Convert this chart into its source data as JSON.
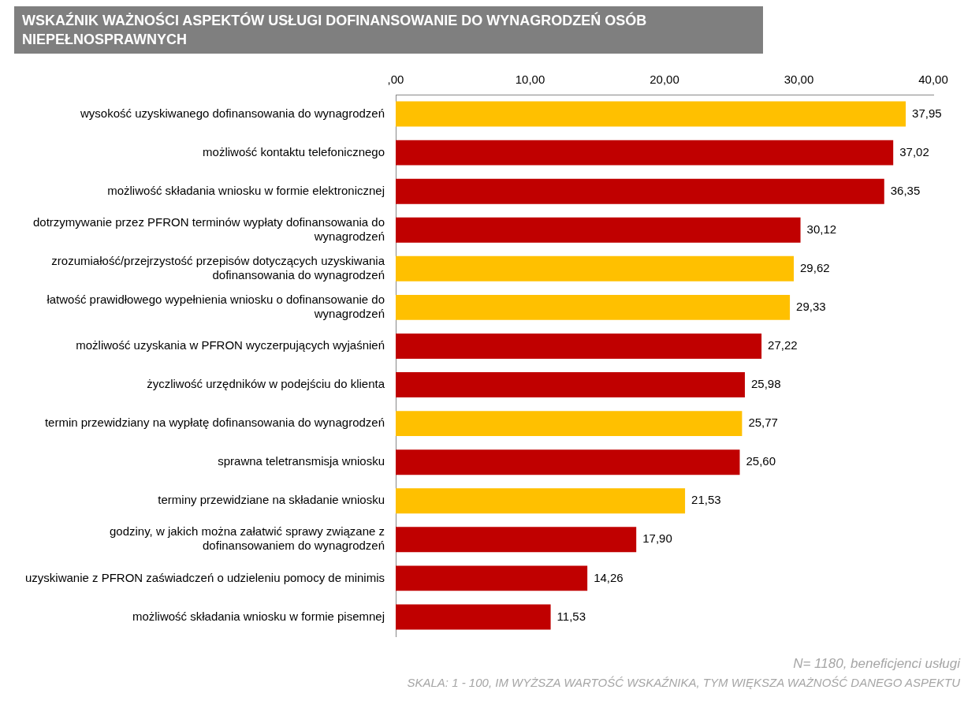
{
  "chart_data": {
    "type": "bar",
    "orientation": "horizontal",
    "title": "WSKAŹNIK WAŻNOŚCI ASPEKTÓW USŁUGI DOFINANSOWANIE DO WYNAGRODZEŃ OSÓB NIEPEŁNOSPRAWNYCH",
    "categories": [
      "wysokość uzyskiwanego dofinansowania do wynagrodzeń",
      "możliwość kontaktu telefonicznego",
      "możliwość składania wniosku w formie elektronicznej",
      "dotrzymywanie przez PFRON terminów wypłaty dofinansowania do wynagrodzeń",
      "zrozumiałość/przejrzystość przepisów dotyczących uzyskiwania dofinansowania do wynagrodzeń",
      "łatwość prawidłowego wypełnienia wniosku o dofinansowanie do wynagrodzeń",
      "możliwość uzyskania w PFRON wyczerpujących wyjaśnień",
      "życzliwość urzędników w podejściu do klienta",
      "termin przewidziany na wypłatę dofinansowania do wynagrodzeń",
      "sprawna teletransmisja wniosku",
      "terminy przewidziane na składanie wniosku",
      "godziny, w jakich można załatwić sprawy związane z dofinansowaniem do wynagrodzeń",
      "uzyskiwanie z PFRON zaświadczeń o udzieleniu pomocy de minimis",
      "możliwość składania wniosku w formie pisemnej"
    ],
    "values": [
      37.95,
      37.02,
      36.35,
      30.12,
      29.62,
      29.33,
      27.22,
      25.98,
      25.77,
      25.6,
      21.53,
      17.9,
      14.26,
      11.53
    ],
    "colors": [
      "#ffc000",
      "#c00000",
      "#c00000",
      "#c00000",
      "#ffc000",
      "#ffc000",
      "#c00000",
      "#c00000",
      "#ffc000",
      "#c00000",
      "#ffc000",
      "#c00000",
      "#c00000",
      "#c00000"
    ],
    "value_labels": [
      "37,95",
      "37,02",
      "36,35",
      "30,12",
      "29,62",
      "29,33",
      "27,22",
      "25,98",
      "25,77",
      "25,60",
      "21,53",
      "17,90",
      "14,26",
      "11,53"
    ],
    "xlim": [
      0,
      40
    ],
    "xticks": [
      {
        "value": 0,
        "label": ",00"
      },
      {
        "value": 10,
        "label": "10,00"
      },
      {
        "value": 20,
        "label": "20,00"
      },
      {
        "value": 30,
        "label": "30,00"
      },
      {
        "value": 40,
        "label": "40,00"
      }
    ],
    "grid": false,
    "annotations": [
      "N= 1180, beneficjenci usługi",
      "SKALA: 1 - 100, IM WYŻSZA WARTOŚĆ WSKAŹNIKA, TYM WIĘKSZA WAŻNOŚĆ DANEGO ASPEKTU"
    ]
  }
}
